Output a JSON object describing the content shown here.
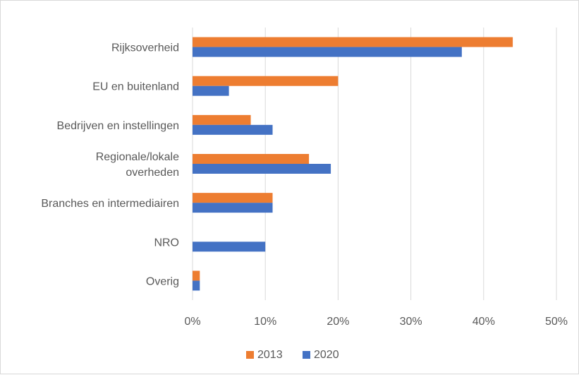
{
  "chart_data": {
    "type": "bar",
    "orientation": "horizontal",
    "categories": [
      "Rijksoverheid",
      "EU en buitenland",
      "Bedrijven en instellingen",
      "Regionale/lokale overheden",
      "Branches en intermediairen",
      "NRO",
      "Overig"
    ],
    "category_lines": [
      [
        "Rijksoverheid"
      ],
      [
        "EU en buitenland"
      ],
      [
        "Bedrijven en instellingen"
      ],
      [
        "Regionale/lokale",
        "overheden"
      ],
      [
        "Branches en intermediairen"
      ],
      [
        "NRO"
      ],
      [
        "Overig"
      ]
    ],
    "series": [
      {
        "name": "2013",
        "color": "#ed7d31",
        "values": [
          44,
          20,
          8,
          16,
          11,
          0,
          1
        ]
      },
      {
        "name": "2020",
        "color": "#4472c4",
        "values": [
          37,
          5,
          11,
          19,
          11,
          10,
          1
        ]
      }
    ],
    "xlim": [
      0,
      50
    ],
    "xticks": [
      0,
      10,
      20,
      30,
      40,
      50
    ],
    "tick_labels": [
      "0%",
      "10%",
      "20%",
      "30%",
      "40%",
      "50%"
    ],
    "grid": true,
    "legend_position": "bottom",
    "title": "",
    "xlabel": "",
    "ylabel": ""
  }
}
